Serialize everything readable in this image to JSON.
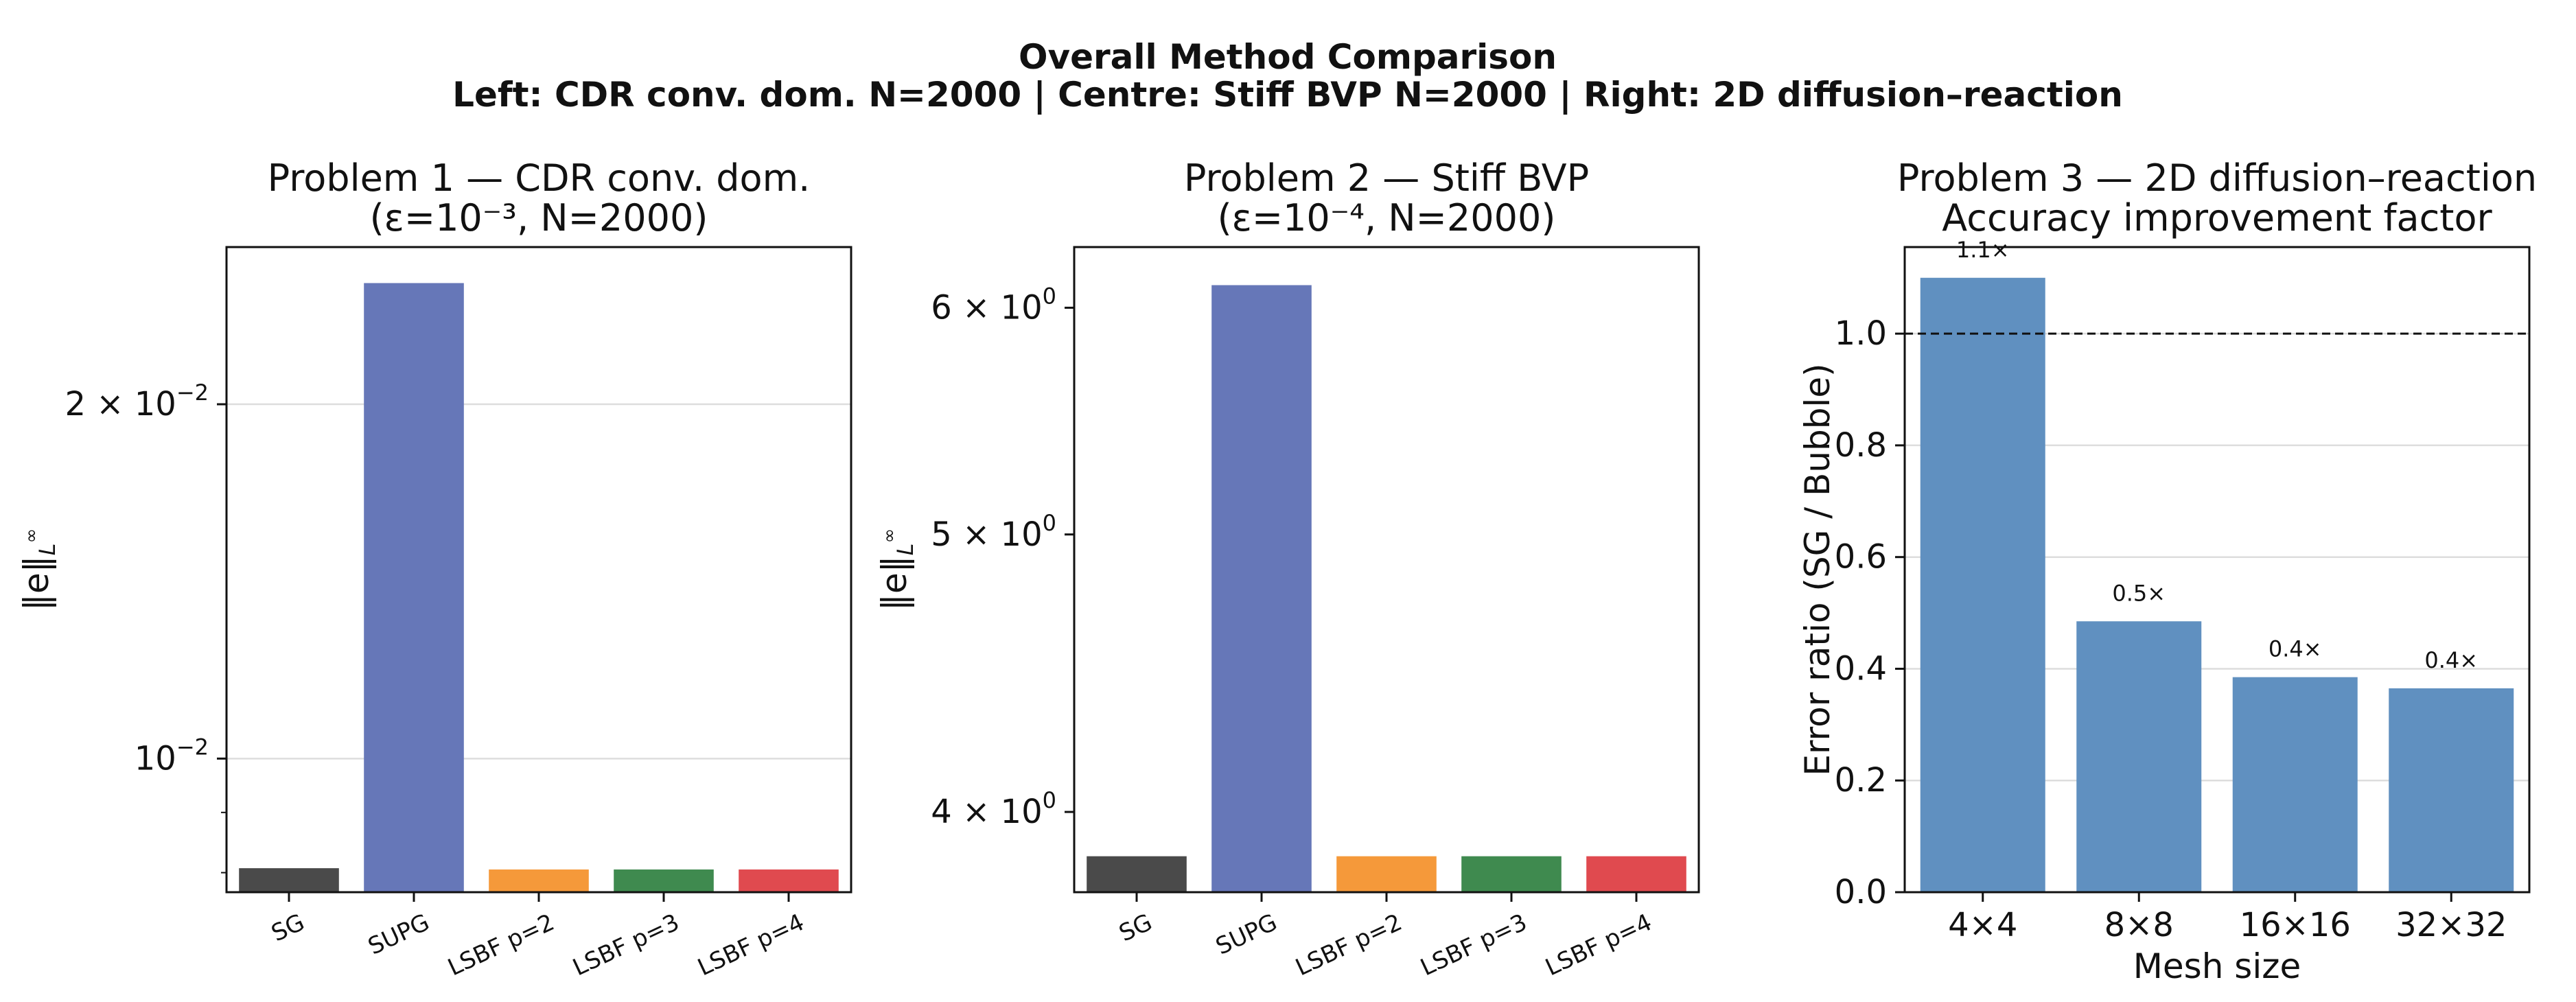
{
  "figure": {
    "title": "Overall Method Comparison",
    "subtitle": "Left: CDR conv. dom. N=2000  |  Centre: Stiff BVP N=2000  |  Right: 2D diffusion–reaction"
  },
  "chart_data": [
    {
      "type": "bar",
      "title": "Problem 1 — CDR conv. dom.",
      "title_line2": "(ε=10⁻³, N=2000)",
      "ylabel": "‖e‖",
      "ylabel_sub": "L",
      "ylabel_sup": "∞",
      "yscale": "log",
      "ylim": [
        0.0077,
        0.0272
      ],
      "yticks": [
        {
          "value": 0.02,
          "mantissa": "2 × 10",
          "exponent": "−2"
        },
        {
          "value": 0.01,
          "mantissa": "10",
          "exponent": "−2"
        }
      ],
      "grid": "y",
      "categories": [
        "SG",
        "SUPG",
        "LSBF p=2",
        "LSBF p=3",
        "LSBF p=4"
      ],
      "values": [
        0.00807,
        0.02535,
        0.00805,
        0.00805,
        0.00805
      ],
      "colors": [
        "#4a4a4a",
        "#6677b8",
        "#f5993a",
        "#3f8a4f",
        "#e04a4f"
      ]
    },
    {
      "type": "bar",
      "title": "Problem 2 — Stiff BVP",
      "title_line2": "(ε=10⁻⁴, N=2000)",
      "ylabel": "‖e‖",
      "ylabel_sub": "L",
      "ylabel_sup": "∞",
      "yscale": "log",
      "ylim": [
        3.75,
        6.3
      ],
      "yticks": [
        {
          "value": 6,
          "mantissa": "6 × 10",
          "exponent": "0"
        },
        {
          "value": 5,
          "mantissa": "5 × 10",
          "exponent": "0"
        },
        {
          "value": 4,
          "mantissa": "4 × 10",
          "exponent": "0"
        }
      ],
      "grid": "none",
      "categories": [
        "SG",
        "SUPG",
        "LSBF p=2",
        "LSBF p=3",
        "LSBF p=4"
      ],
      "values": [
        3.86,
        6.11,
        3.86,
        3.86,
        3.86
      ],
      "colors": [
        "#4a4a4a",
        "#6677b8",
        "#f5993a",
        "#3f8a4f",
        "#e04a4f"
      ]
    },
    {
      "type": "bar",
      "title": "Problem 3 — 2D diffusion–reaction",
      "title_line2": "Accuracy improvement factor",
      "xlabel": "Mesh size",
      "ylabel": "Error ratio (SG / Bubble)",
      "yscale": "linear",
      "ylim": [
        0,
        1.155
      ],
      "yticks": [
        {
          "value": 0.0,
          "label": "0.0"
        },
        {
          "value": 0.2,
          "label": "0.2"
        },
        {
          "value": 0.4,
          "label": "0.4"
        },
        {
          "value": 0.6,
          "label": "0.6"
        },
        {
          "value": 0.8,
          "label": "0.8"
        },
        {
          "value": 1.0,
          "label": "1.0"
        }
      ],
      "grid": "y",
      "reference_line": 1.0,
      "categories": [
        "4×4",
        "8×8",
        "16×16",
        "32×32"
      ],
      "values": [
        1.1,
        0.485,
        0.385,
        0.365
      ],
      "data_labels": [
        "1.1×",
        "0.5×",
        "0.4×",
        "0.4×"
      ],
      "colors": [
        "#6090c0",
        "#6090c0",
        "#6090c0",
        "#6090c0"
      ]
    }
  ]
}
